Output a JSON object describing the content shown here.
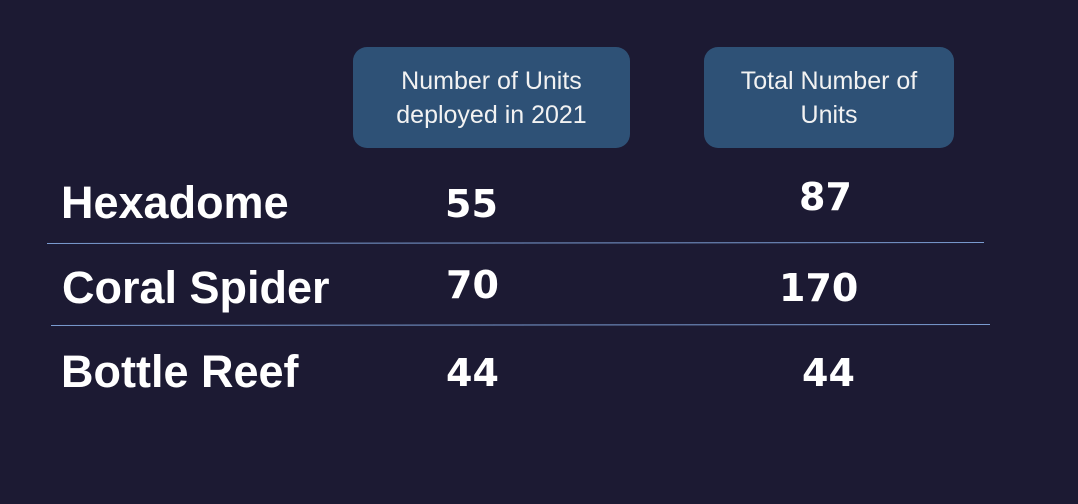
{
  "headers": {
    "deployed_line1": "Number of Units",
    "deployed_line2": "deployed in 2021",
    "total_line1": "Total Number of",
    "total_line2": "Units"
  },
  "rows": [
    {
      "label": "Hexadome",
      "deployed_2021": "55",
      "total": "87"
    },
    {
      "label": "Coral Spider",
      "deployed_2021": "70",
      "total": "170"
    },
    {
      "label": "Bottle Reef",
      "deployed_2021": "44",
      "total": "44"
    }
  ],
  "colors": {
    "background": "#1c1a33",
    "header_box": "#2e5176",
    "divider": "#7a9bd0",
    "text": "#ffffff"
  }
}
